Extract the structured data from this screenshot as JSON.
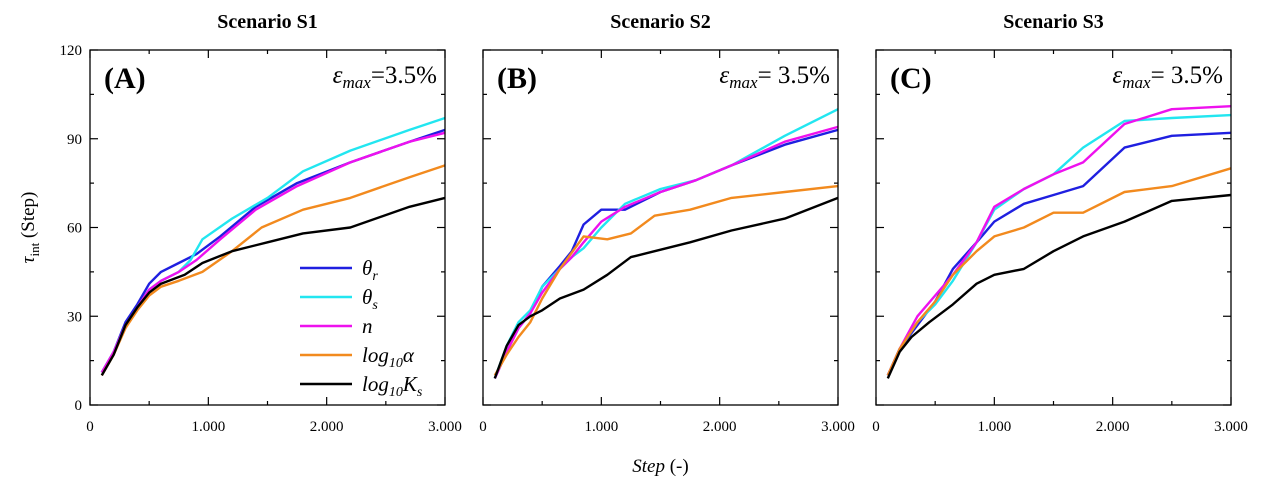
{
  "chart_data": [
    {
      "type": "line",
      "title": "Scenario S1",
      "panel_label": "(A)",
      "annotation": {
        "symbol": "ε",
        "sub": "max",
        "text": "=3.5%"
      },
      "xlabel": {
        "text": "Step",
        "suffix": " (-)"
      },
      "ylabel": {
        "text": "τ",
        "sub": "int",
        "suffix": " (Step)"
      },
      "xlim": [
        0,
        3000
      ],
      "ylim": [
        0,
        120
      ],
      "x_ticks": [
        0,
        1000,
        2000,
        3000
      ],
      "x_tick_labels": [
        "0",
        "1.000",
        "2.000",
        "3.000"
      ],
      "y_ticks": [
        0,
        30,
        60,
        90,
        120
      ],
      "y_tick_labels": [
        "0",
        "30",
        "60",
        "90",
        "120"
      ],
      "legend_position": "bottom-right",
      "series": [
        {
          "name": "θr",
          "label": "θ",
          "label_sub": "r",
          "color": "#1f1fe0",
          "x": [
            100,
            200,
            300,
            400,
            500,
            600,
            750,
            900,
            1100,
            1400,
            1750,
            2200,
            2700,
            3000
          ],
          "y": [
            11,
            18,
            28,
            34,
            41,
            45,
            48,
            51,
            57,
            67,
            75,
            82,
            89,
            93
          ]
        },
        {
          "name": "θs",
          "label": "θ",
          "label_sub": "s",
          "color": "#22e6f0",
          "x": [
            100,
            200,
            300,
            400,
            500,
            600,
            750,
            850,
            950,
            1200,
            1500,
            1800,
            2200,
            2700,
            3000
          ],
          "y": [
            11,
            18,
            27,
            33,
            39,
            42,
            45,
            49,
            56,
            63,
            70,
            79,
            86,
            93,
            97
          ]
        },
        {
          "name": "n",
          "label": "n",
          "label_sub": "",
          "color": "#ee11ee",
          "x": [
            100,
            200,
            300,
            400,
            500,
            600,
            750,
            900,
            1100,
            1400,
            1750,
            2200,
            2700,
            3000
          ],
          "y": [
            11,
            18,
            27,
            33,
            39,
            42,
            45,
            49,
            56,
            66,
            74,
            82,
            89,
            92
          ]
        },
        {
          "name": "log10α",
          "label": "log",
          "label_sub": "10",
          "label_after": "α",
          "color": "#f28a1e",
          "x": [
            100,
            200,
            300,
            400,
            500,
            600,
            750,
            950,
            1200,
            1450,
            1800,
            2200,
            2700,
            3000
          ],
          "y": [
            10,
            17,
            26,
            32,
            37,
            40,
            42,
            45,
            52,
            60,
            66,
            70,
            77,
            81
          ]
        },
        {
          "name": "log10Ks",
          "label": "log",
          "label_sub": "10",
          "label_after": "K",
          "label_after_sub": "s",
          "color": "#000000",
          "x": [
            100,
            200,
            300,
            400,
            500,
            600,
            800,
            950,
            1200,
            1500,
            1800,
            2200,
            2700,
            3000
          ],
          "y": [
            10,
            17,
            27,
            33,
            38,
            41,
            44,
            48,
            52,
            55,
            58,
            60,
            67,
            70
          ]
        }
      ]
    },
    {
      "type": "line",
      "title": "Scenario S2",
      "panel_label": "(B)",
      "annotation": {
        "symbol": "ε",
        "sub": "max",
        "text": "= 3.5%"
      },
      "xlim": [
        0,
        3000
      ],
      "ylim": [
        0,
        120
      ],
      "x_ticks": [
        0,
        1000,
        2000,
        3000
      ],
      "x_tick_labels": [
        "0",
        "1.000",
        "2.000",
        "3.000"
      ],
      "series": [
        {
          "name": "θr",
          "color": "#1f1fe0",
          "x": [
            100,
            200,
            300,
            400,
            500,
            650,
            750,
            850,
            1000,
            1200,
            1500,
            1800,
            2100,
            2550,
            3000
          ],
          "y": [
            9,
            18,
            26,
            31,
            40,
            47,
            52,
            61,
            66,
            66,
            72,
            76,
            81,
            88,
            93
          ]
        },
        {
          "name": "θs",
          "color": "#22e6f0",
          "x": [
            100,
            200,
            300,
            400,
            500,
            650,
            750,
            850,
            1000,
            1200,
            1500,
            1800,
            2100,
            2550,
            3000
          ],
          "y": [
            9,
            20,
            28,
            32,
            40,
            46,
            50,
            53,
            60,
            68,
            73,
            76,
            81,
            91,
            100
          ]
        },
        {
          "name": "n",
          "color": "#ee11ee",
          "x": [
            100,
            200,
            300,
            400,
            500,
            650,
            750,
            850,
            1000,
            1200,
            1500,
            1800,
            2100,
            2550,
            3000
          ],
          "y": [
            9,
            18,
            26,
            31,
            38,
            46,
            50,
            55,
            62,
            67,
            72,
            76,
            81,
            89,
            94
          ]
        },
        {
          "name": "log10α",
          "color": "#f28a1e",
          "x": [
            100,
            200,
            300,
            400,
            500,
            650,
            850,
            1050,
            1250,
            1450,
            1750,
            2100,
            2550,
            3000
          ],
          "y": [
            10,
            17,
            23,
            28,
            36,
            46,
            57,
            56,
            58,
            64,
            66,
            70,
            72,
            74
          ]
        },
        {
          "name": "log10Ks",
          "color": "#000000",
          "x": [
            100,
            200,
            300,
            400,
            500,
            650,
            850,
            1050,
            1250,
            1450,
            1750,
            2100,
            2550,
            3000
          ],
          "y": [
            9,
            20,
            27,
            30,
            32,
            36,
            39,
            44,
            50,
            52,
            55,
            59,
            63,
            70
          ]
        }
      ]
    },
    {
      "type": "line",
      "title": "Scenario S3",
      "panel_label": "(C)",
      "annotation": {
        "symbol": "ε",
        "sub": "max",
        "text": "= 3.5%"
      },
      "xlim": [
        0,
        3000
      ],
      "ylim": [
        0,
        120
      ],
      "x_ticks": [
        0,
        1000,
        2000,
        3000
      ],
      "x_tick_labels": [
        "0",
        "1.000",
        "2.000",
        "3.000"
      ],
      "series": [
        {
          "name": "θr",
          "color": "#1f1fe0",
          "x": [
            100,
            200,
            350,
            500,
            650,
            850,
            1000,
            1250,
            1500,
            1750,
            2100,
            2500,
            3000
          ],
          "y": [
            10,
            19,
            27,
            35,
            46,
            55,
            62,
            68,
            71,
            74,
            87,
            91,
            92
          ]
        },
        {
          "name": "θs",
          "color": "#22e6f0",
          "x": [
            100,
            200,
            350,
            500,
            650,
            850,
            1000,
            1250,
            1500,
            1750,
            2100,
            2500,
            3000
          ],
          "y": [
            10,
            19,
            28,
            34,
            42,
            55,
            66,
            73,
            78,
            87,
            96,
            97,
            98
          ]
        },
        {
          "name": "n",
          "color": "#ee11ee",
          "x": [
            100,
            200,
            350,
            500,
            650,
            850,
            1000,
            1250,
            1500,
            1750,
            2100,
            2500,
            3000
          ],
          "y": [
            10,
            19,
            30,
            37,
            44,
            55,
            67,
            73,
            78,
            82,
            95,
            100,
            101
          ]
        },
        {
          "name": "log10α",
          "color": "#f28a1e",
          "x": [
            100,
            200,
            350,
            500,
            650,
            850,
            1000,
            1250,
            1500,
            1750,
            2100,
            2500,
            3000
          ],
          "y": [
            10,
            19,
            28,
            35,
            44,
            52,
            57,
            60,
            65,
            65,
            72,
            74,
            80
          ]
        },
        {
          "name": "log10Ks",
          "color": "#000000",
          "x": [
            100,
            200,
            300,
            450,
            650,
            850,
            1000,
            1250,
            1500,
            1750,
            2100,
            2500,
            3000
          ],
          "y": [
            9,
            18,
            23,
            28,
            34,
            41,
            44,
            46,
            52,
            57,
            62,
            69,
            71
          ]
        }
      ]
    }
  ]
}
